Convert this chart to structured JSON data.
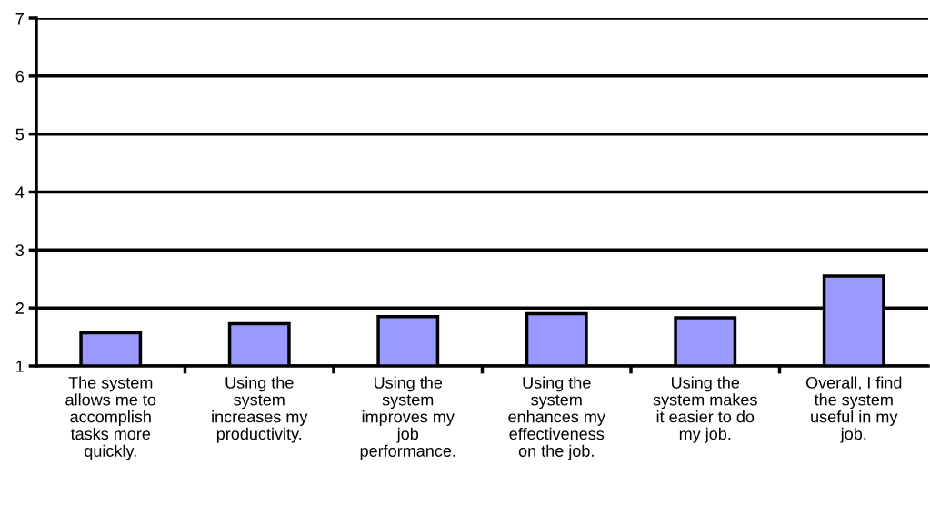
{
  "chart_data": {
    "type": "bar",
    "categories": [
      "The system\nallows me to\naccomplish\ntasks more\nquickly.",
      "Using the\nsystem\nincreases my\nproductivity.",
      "Using the\nsystem\nimproves my\njob\nperformance.",
      "Using the\nsystem\nenhances my\neffectiveness\non the job.",
      "Using the\nsystem makes\nit easier to do\nmy job.",
      "Overall, I find\nthe system\nuseful in my\njob."
    ],
    "values": [
      1.57,
      1.73,
      1.85,
      1.9,
      1.83,
      2.55
    ],
    "color": "#9999ff",
    "ylim": [
      1,
      7
    ],
    "yticks": [
      1,
      2,
      3,
      4,
      5,
      6,
      7
    ],
    "grid": "y"
  }
}
